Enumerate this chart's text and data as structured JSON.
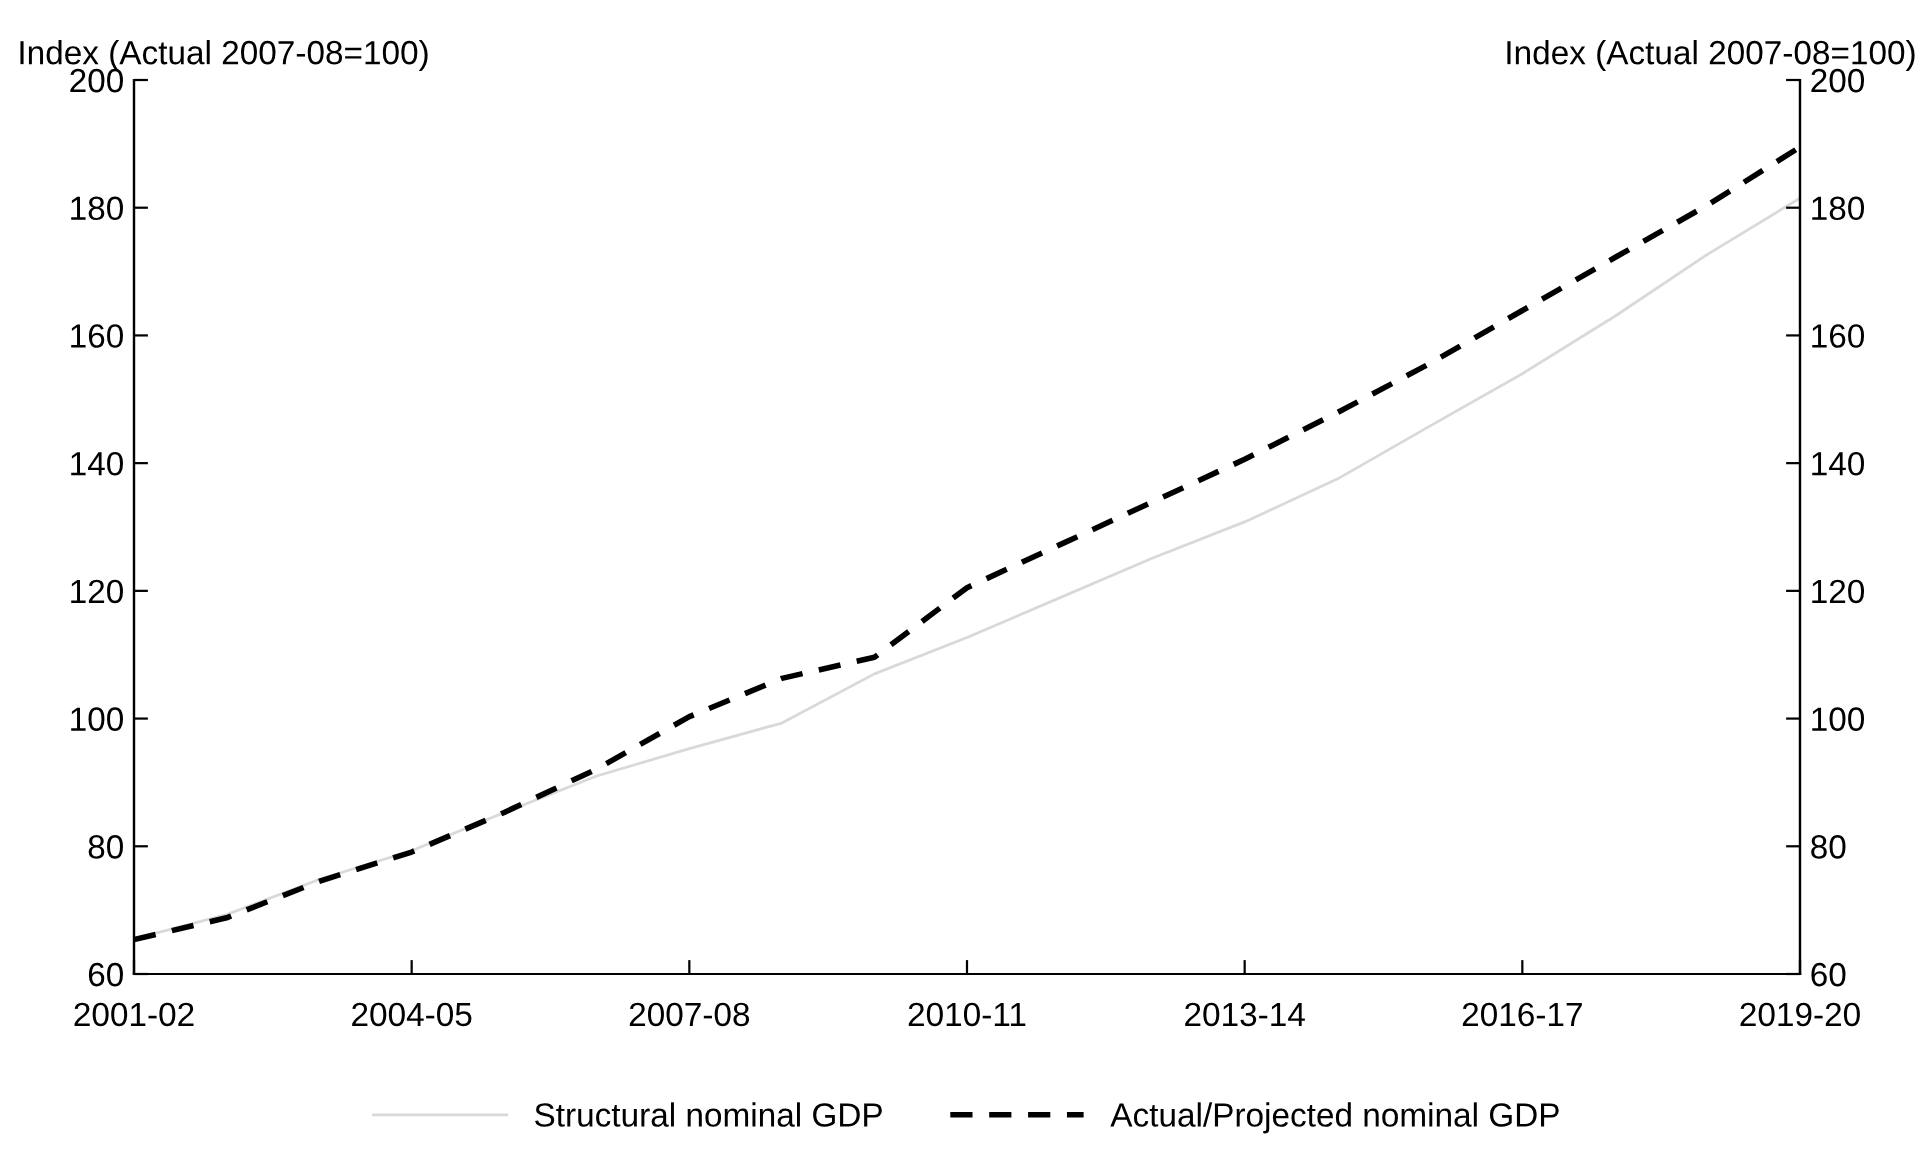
{
  "chart_data": {
    "type": "line",
    "ylabel": "Index (Actual 2007-08=100)",
    "y2label": "Index (Actual 2007-08=100)",
    "categories": [
      "2001-02",
      null,
      null,
      "2004-05",
      null,
      null,
      "2007-08",
      null,
      null,
      "2010-11",
      null,
      null,
      "2013-14",
      null,
      null,
      "2016-17",
      null,
      null,
      "2019-20"
    ],
    "series": [
      {
        "name": "Structural nominal GDP",
        "color": "#d9d9d9",
        "line_style": "solid",
        "values": [
          65.5,
          69.3,
          74.8,
          79.3,
          85.3,
          91,
          95.3,
          99.3,
          107,
          112.7,
          118.9,
          125.1,
          130.8,
          137.5,
          145.8,
          154,
          163,
          172.7,
          181.5
        ]
      },
      {
        "name": "Actual/Projected nominal GDP",
        "color": "#000000",
        "line_style": "dashed",
        "values": [
          65.4,
          68.8,
          74.5,
          79.1,
          85.3,
          92.1,
          100.3,
          106.3,
          109.6,
          120.5,
          127.2,
          133.9,
          140.6,
          147.9,
          155.6,
          163.9,
          172.2,
          180.4,
          189.5
        ]
      }
    ],
    "ylim": [
      60,
      200
    ],
    "yticks": [
      60,
      80,
      100,
      120,
      140,
      160,
      180,
      200
    ],
    "y2lim": [
      60,
      200
    ],
    "y2ticks": [
      60,
      80,
      100,
      120,
      140,
      160,
      180,
      200
    ],
    "grid": false,
    "legend": "bottom",
    "marker": "none"
  }
}
